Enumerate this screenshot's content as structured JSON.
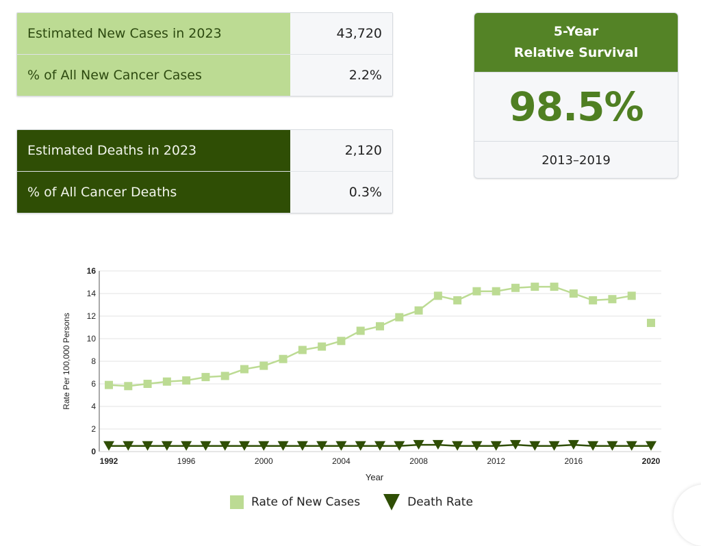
{
  "new_cases": {
    "rows": [
      {
        "label": "Estimated New Cases in 2023",
        "value": "43,720"
      },
      {
        "label": "% of All New Cancer Cases",
        "value": "2.2%"
      }
    ]
  },
  "deaths": {
    "rows": [
      {
        "label": "Estimated Deaths in 2023",
        "value": "2,120"
      },
      {
        "label": "% of All Cancer Deaths",
        "value": "0.3%"
      }
    ]
  },
  "survival": {
    "title_line1": "5-Year",
    "title_line2": "Relative Survival",
    "value": "98.5%",
    "period": "2013–2019"
  },
  "colors": {
    "light_green": "#bcdb93",
    "dark_green": "#2f4e05",
    "accent_green": "#548326",
    "value_green": "#4f7f22"
  },
  "chart_data": {
    "type": "line",
    "title": "",
    "xlabel": "Year",
    "ylabel": "Rate Per 100,000 Persons",
    "xlim": [
      1992,
      2020
    ],
    "ylim": [
      0,
      16
    ],
    "yticks": [
      "0",
      "2",
      "4",
      "6",
      "8",
      "10",
      "12",
      "14",
      "16"
    ],
    "xticks": [
      {
        "value": 1992,
        "label": "1992",
        "bold": true
      },
      {
        "value": 1996,
        "label": "1996",
        "bold": false
      },
      {
        "value": 2000,
        "label": "2000",
        "bold": false
      },
      {
        "value": 2004,
        "label": "2004",
        "bold": false
      },
      {
        "value": 2008,
        "label": "2008",
        "bold": false
      },
      {
        "value": 2012,
        "label": "2012",
        "bold": false
      },
      {
        "value": 2016,
        "label": "2016",
        "bold": false
      },
      {
        "value": 2020,
        "label": "2020",
        "bold": true
      }
    ],
    "grid": true,
    "legend_position": "bottom",
    "x": [
      1992,
      1993,
      1994,
      1995,
      1996,
      1997,
      1998,
      1999,
      2000,
      2001,
      2002,
      2003,
      2004,
      2005,
      2006,
      2007,
      2008,
      2009,
      2010,
      2011,
      2012,
      2013,
      2014,
      2015,
      2016,
      2017,
      2018,
      2019,
      2020
    ],
    "series": [
      {
        "name": "Rate of New Cases",
        "marker": "square",
        "color": "#bcdb93",
        "line_through": 2019,
        "values": [
          5.9,
          5.8,
          6.0,
          6.2,
          6.3,
          6.6,
          6.7,
          7.3,
          7.6,
          8.2,
          9.0,
          9.3,
          9.8,
          10.7,
          11.1,
          11.9,
          12.5,
          13.8,
          13.4,
          14.2,
          14.2,
          14.5,
          14.6,
          14.6,
          14.0,
          13.4,
          13.5,
          13.8,
          11.4
        ]
      },
      {
        "name": "Death Rate",
        "marker": "triangle-down",
        "color": "#2f4e05",
        "line_through": 2020,
        "values": [
          0.5,
          0.5,
          0.5,
          0.5,
          0.5,
          0.5,
          0.5,
          0.5,
          0.5,
          0.5,
          0.5,
          0.5,
          0.5,
          0.5,
          0.5,
          0.5,
          0.6,
          0.6,
          0.5,
          0.5,
          0.5,
          0.6,
          0.5,
          0.5,
          0.6,
          0.5,
          0.5,
          0.5,
          0.5
        ]
      }
    ]
  }
}
